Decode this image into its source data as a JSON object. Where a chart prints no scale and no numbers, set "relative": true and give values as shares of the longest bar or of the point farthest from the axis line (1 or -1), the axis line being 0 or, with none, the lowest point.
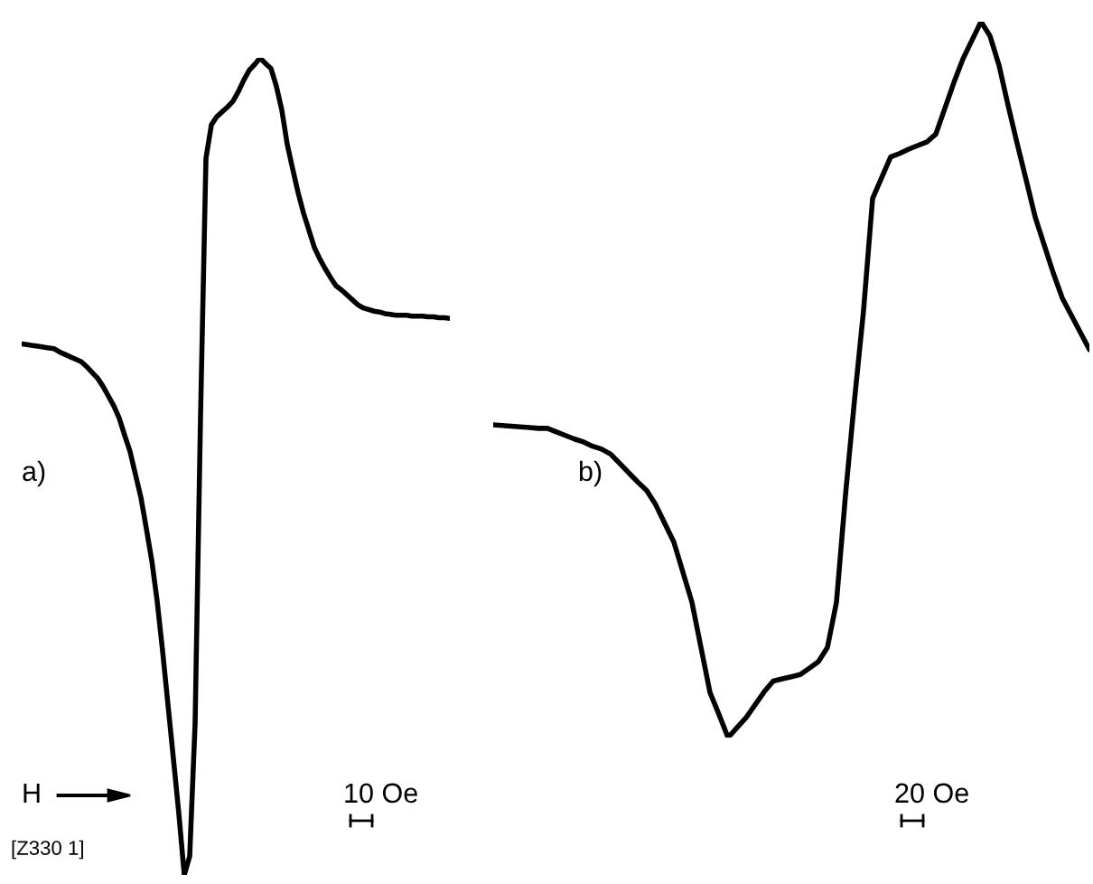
{
  "chart_data": [
    {
      "type": "line",
      "relative": true,
      "color": "#000000",
      "annotations": [
        "a)",
        "H",
        "10 Oe",
        "[Z330 1]"
      ],
      "categories": [
        null,
        null,
        null,
        null,
        null,
        null,
        null,
        null,
        null,
        null,
        null,
        null,
        null,
        null,
        null,
        null,
        null,
        null,
        null,
        null,
        null,
        null,
        null,
        null,
        null,
        null,
        null,
        null,
        null,
        null,
        null,
        null,
        null,
        null,
        null,
        null,
        null,
        null,
        null,
        null,
        null,
        null,
        null,
        null,
        null,
        null,
        null,
        null,
        null,
        null,
        null,
        null,
        null,
        null,
        null,
        null,
        null,
        null,
        null,
        null,
        null,
        null,
        null,
        null,
        null,
        null,
        null,
        null,
        null,
        null,
        null,
        null,
        null,
        null,
        null,
        null,
        null,
        null,
        null,
        null
      ],
      "values": [
        0.65,
        0.649,
        0.648,
        0.647,
        0.646,
        0.645,
        0.644,
        0.64,
        0.637,
        0.634,
        0.631,
        0.628,
        0.622,
        0.615,
        0.608,
        0.598,
        0.586,
        0.574,
        0.559,
        0.538,
        0.518,
        0.49,
        0.462,
        0.424,
        0.385,
        0.335,
        0.274,
        0.208,
        0.142,
        0.075,
        0.0,
        0.023,
        0.186,
        0.562,
        0.877,
        0.918,
        0.928,
        0.934,
        0.94,
        0.947,
        0.959,
        0.973,
        0.985,
        0.992,
        1.0,
        0.993,
        0.987,
        0.965,
        0.936,
        0.894,
        0.864,
        0.835,
        0.81,
        0.789,
        0.768,
        0.754,
        0.742,
        0.731,
        0.721,
        0.716,
        0.71,
        0.704,
        0.698,
        0.694,
        0.692,
        0.69,
        0.689,
        0.687,
        0.686,
        0.685,
        0.685,
        0.685,
        0.684,
        0.684,
        0.684,
        0.683,
        0.683,
        0.682,
        0.682,
        0.681
      ]
    },
    {
      "type": "line",
      "relative": true,
      "color": "#000000",
      "annotations": [
        "b)",
        "20 Oe"
      ],
      "categories": [
        null,
        null,
        null,
        null,
        null,
        null,
        null,
        null,
        null,
        null,
        null,
        null,
        null,
        null,
        null,
        null,
        null,
        null,
        null,
        null,
        null,
        null,
        null,
        null,
        null,
        null,
        null,
        null,
        null,
        null,
        null,
        null,
        null,
        null,
        null,
        null,
        null,
        null,
        null,
        null,
        null,
        null,
        null,
        null,
        null,
        null,
        null,
        null,
        null,
        null,
        null,
        null,
        null,
        null,
        null,
        null,
        null,
        null,
        null,
        null,
        null,
        null,
        null,
        null,
        null,
        null,
        null
      ],
      "values": [
        0.437,
        0.436,
        0.435,
        0.434,
        0.433,
        0.432,
        0.432,
        0.427,
        0.422,
        0.417,
        0.413,
        0.407,
        0.403,
        0.396,
        0.383,
        0.37,
        0.357,
        0.345,
        0.325,
        0.299,
        0.273,
        0.231,
        0.189,
        0.126,
        0.063,
        0.032,
        0.0,
        0.014,
        0.028,
        0.046,
        0.064,
        0.079,
        0.082,
        0.085,
        0.088,
        0.097,
        0.106,
        0.126,
        0.189,
        0.339,
        0.472,
        0.597,
        0.753,
        0.782,
        0.811,
        0.816,
        0.822,
        0.827,
        0.832,
        0.843,
        0.879,
        0.915,
        0.948,
        0.974,
        1.0,
        0.98,
        0.939,
        0.883,
        0.83,
        0.779,
        0.727,
        0.688,
        0.649,
        0.614,
        0.59,
        0.566,
        0.542
      ]
    }
  ]
}
